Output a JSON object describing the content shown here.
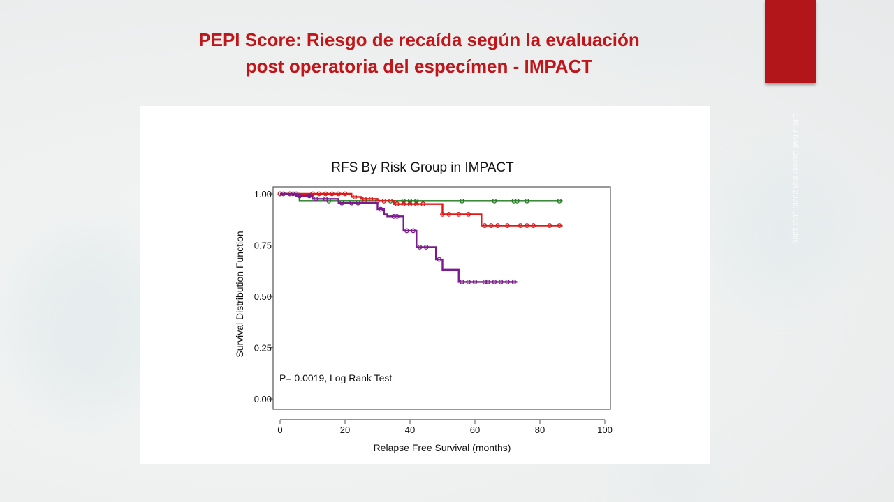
{
  "slide": {
    "title_line1": "PEPI Score: Riesgo de recaída según la evaluación",
    "title_line2": "post operatoria del especímen - IMPACT",
    "citation": "Ellis J Natl Cancer Inst 2008; 100: 1380",
    "accent_color": "#c0161a",
    "ribbon_color": "#b3161a"
  },
  "chart_data": {
    "type": "line",
    "title": "RFS By Risk Group in IMPACT",
    "xlabel": "Relapse Free Survival (months)",
    "ylabel": "Survival Distribution Function",
    "xlim": [
      0,
      100
    ],
    "ylim": [
      0,
      1
    ],
    "x_ticks": [
      "0",
      "20",
      "40",
      "60",
      "80",
      "100"
    ],
    "y_ticks": [
      "0.00",
      "0.25",
      "0.50",
      "0.75",
      "1.00"
    ],
    "annotation": "P= 0.0019, Log Rank Test",
    "grid": false,
    "series": [
      {
        "color": "#1f7a1f",
        "steps": [
          [
            0,
            1.0
          ],
          [
            6,
            0.965
          ],
          [
            87,
            0.965
          ]
        ],
        "censored": [
          [
            0,
            1.0
          ],
          [
            3,
            1.0
          ],
          [
            5,
            1.0
          ],
          [
            15,
            0.965
          ],
          [
            26,
            0.965
          ],
          [
            34,
            0.965
          ],
          [
            38,
            0.965
          ],
          [
            40,
            0.965
          ],
          [
            42,
            0.965
          ],
          [
            56,
            0.965
          ],
          [
            66,
            0.965
          ],
          [
            72,
            0.965
          ],
          [
            73,
            0.965
          ],
          [
            76,
            0.965
          ],
          [
            86,
            0.965
          ]
        ]
      },
      {
        "color": "#e01818",
        "steps": [
          [
            0,
            1.0
          ],
          [
            22,
            0.985
          ],
          [
            25,
            0.975
          ],
          [
            30,
            0.965
          ],
          [
            35,
            0.95
          ],
          [
            50,
            0.9
          ],
          [
            62,
            0.845
          ],
          [
            87,
            0.845
          ]
        ],
        "censored": [
          [
            0,
            1.0
          ],
          [
            3,
            1.0
          ],
          [
            10,
            1.0
          ],
          [
            12,
            1.0
          ],
          [
            14,
            1.0
          ],
          [
            16,
            1.0
          ],
          [
            18,
            1.0
          ],
          [
            20,
            1.0
          ],
          [
            23,
            0.985
          ],
          [
            26,
            0.975
          ],
          [
            28,
            0.975
          ],
          [
            30,
            0.965
          ],
          [
            32,
            0.965
          ],
          [
            36,
            0.95
          ],
          [
            38,
            0.95
          ],
          [
            40,
            0.95
          ],
          [
            42,
            0.95
          ],
          [
            44,
            0.95
          ],
          [
            50,
            0.9
          ],
          [
            52,
            0.9
          ],
          [
            55,
            0.9
          ],
          [
            58,
            0.9
          ],
          [
            63,
            0.845
          ],
          [
            65,
            0.845
          ],
          [
            67,
            0.845
          ],
          [
            70,
            0.845
          ],
          [
            74,
            0.845
          ],
          [
            76,
            0.845
          ],
          [
            78,
            0.845
          ],
          [
            83,
            0.845
          ],
          [
            86,
            0.845
          ]
        ]
      },
      {
        "color": "#7a1a8c",
        "steps": [
          [
            0,
            1.0
          ],
          [
            5,
            0.99
          ],
          [
            10,
            0.975
          ],
          [
            18,
            0.955
          ],
          [
            30,
            0.925
          ],
          [
            32,
            0.9
          ],
          [
            33,
            0.89
          ],
          [
            38,
            0.82
          ],
          [
            42,
            0.74
          ],
          [
            48,
            0.68
          ],
          [
            50,
            0.63
          ],
          [
            55,
            0.57
          ],
          [
            73,
            0.57
          ]
        ],
        "censored": [
          [
            1,
            1.0
          ],
          [
            4,
            1.0
          ],
          [
            6,
            0.99
          ],
          [
            9,
            0.99
          ],
          [
            11,
            0.975
          ],
          [
            14,
            0.975
          ],
          [
            19,
            0.955
          ],
          [
            22,
            0.955
          ],
          [
            24,
            0.955
          ],
          [
            31,
            0.925
          ],
          [
            35,
            0.89
          ],
          [
            36,
            0.89
          ],
          [
            39,
            0.82
          ],
          [
            41,
            0.82
          ],
          [
            43,
            0.74
          ],
          [
            45,
            0.74
          ],
          [
            49,
            0.68
          ],
          [
            56,
            0.57
          ],
          [
            58,
            0.57
          ],
          [
            60,
            0.57
          ],
          [
            63,
            0.57
          ],
          [
            64,
            0.57
          ],
          [
            66,
            0.57
          ],
          [
            68,
            0.57
          ],
          [
            70,
            0.57
          ],
          [
            72,
            0.57
          ]
        ]
      }
    ]
  }
}
